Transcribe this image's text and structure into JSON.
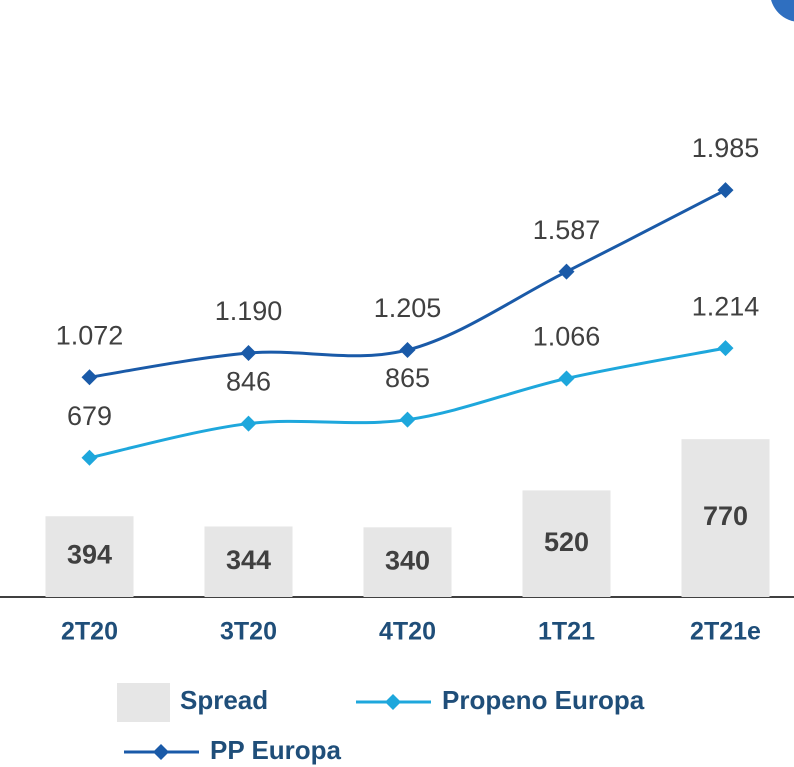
{
  "chart_data": {
    "type": "bar",
    "categories": [
      "2T20",
      "3T20",
      "4T20",
      "1T21",
      "2T21e"
    ],
    "ylim": [
      0,
      2500
    ],
    "series": [
      {
        "name": "Spread",
        "type": "bar",
        "color": "#e6e6e6",
        "values": [
          394,
          344,
          340,
          520,
          770
        ]
      },
      {
        "name": "Propeno Europa",
        "type": "line",
        "color": "#1ea7dc",
        "values": [
          679,
          846,
          865,
          1066,
          1214
        ],
        "value_labels": [
          "679",
          "846",
          "865",
          "1.066",
          "1.214"
        ]
      },
      {
        "name": "PP Europa",
        "type": "line",
        "color": "#1a5aa8",
        "values": [
          1072,
          1190,
          1205,
          1587,
          1985
        ],
        "value_labels": [
          "1.072",
          "1.190",
          "1.205",
          "1.587",
          "1.985"
        ]
      }
    ]
  }
}
